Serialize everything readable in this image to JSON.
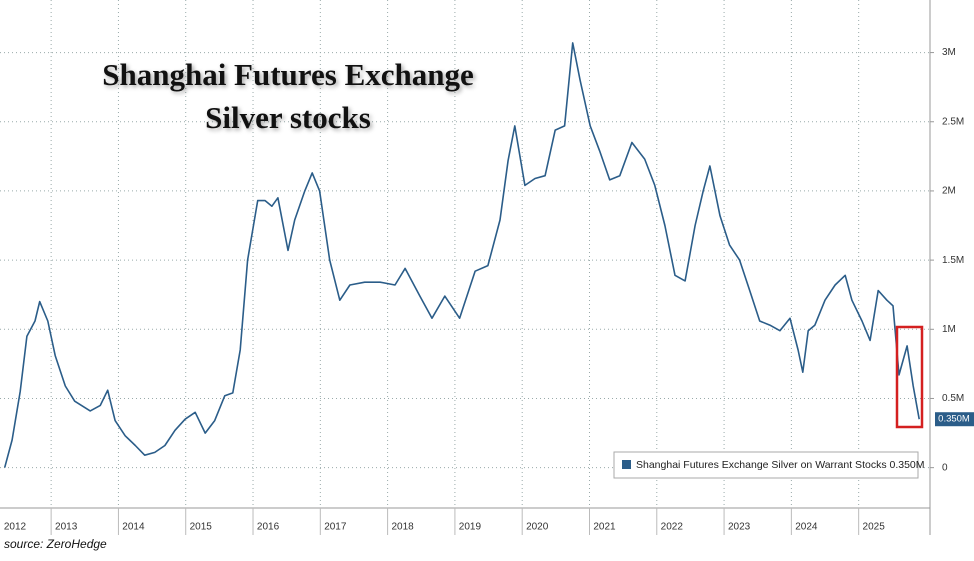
{
  "chart_data": {
    "type": "line",
    "title": "Shanghai Futures Exchange",
    "subtitle": "Silver stocks",
    "source": "source: ZeroHedge",
    "xlim": [
      2012.24,
      2026.06
    ],
    "xticks": [
      2012,
      2013,
      2014,
      2015,
      2016,
      2017,
      2018,
      2019,
      2020,
      2021,
      2022,
      2023,
      2024,
      2025
    ],
    "ylim": [
      -0.27,
      3.38
    ],
    "yticks": [
      0,
      {
        "value": 0.5,
        "label": "0.5M"
      },
      {
        "value": 1,
        "label": "1M"
      },
      {
        "value": 1.5,
        "label": "1.5M"
      },
      {
        "value": 2,
        "label": "2M"
      },
      {
        "value": 2.5,
        "label": "2.5M"
      },
      {
        "value": 3,
        "label": "3M"
      }
    ],
    "grid": true,
    "legend": "lower right",
    "x": [
      2012.31,
      2012.42,
      2012.54,
      2012.64,
      2012.76,
      2012.83,
      2012.95,
      2013.06,
      2013.21,
      2013.35,
      2013.58,
      2013.73,
      2013.84,
      2013.95,
      2014.1,
      2014.25,
      2014.39,
      2014.54,
      2014.69,
      2014.84,
      2014.99,
      2015.14,
      2015.29,
      2015.43,
      2015.58,
      2015.7,
      2015.81,
      2015.92,
      2016.07,
      2016.18,
      2016.28,
      2016.37,
      2016.52,
      2016.62,
      2016.77,
      2016.88,
      2016.99,
      2017.14,
      2017.29,
      2017.44,
      2017.66,
      2017.89,
      2018.11,
      2018.26,
      2018.48,
      2018.66,
      2018.85,
      2019.07,
      2019.3,
      2019.49,
      2019.67,
      2019.79,
      2019.89,
      2020.04,
      2020.19,
      2020.34,
      2020.49,
      2020.63,
      2020.75,
      2020.86,
      2021.01,
      2021.15,
      2021.3,
      2021.45,
      2021.63,
      2021.82,
      2021.97,
      2022.12,
      2022.27,
      2022.42,
      2022.57,
      2022.69,
      2022.79,
      2022.94,
      2023.08,
      2023.23,
      2023.38,
      2023.53,
      2023.68,
      2023.83,
      2023.98,
      2024.1,
      2024.17,
      2024.25,
      2024.35,
      2024.5,
      2024.65,
      2024.8,
      2024.9,
      2025.05,
      2025.17,
      2025.29,
      2025.42,
      2025.51,
      2025.6,
      2025.72,
      2025.81,
      2025.9
    ],
    "series": [
      {
        "name": "Shanghai Futures Exchange Silver on Warrant Stocks 0.350M",
        "color": "#2b5d89",
        "values": [
          0,
          0.2,
          0.55,
          0.95,
          1.06,
          1.2,
          1.06,
          0.81,
          0.59,
          0.48,
          0.41,
          0.45,
          0.56,
          0.34,
          0.23,
          0.16,
          0.09,
          0.11,
          0.16,
          0.27,
          0.35,
          0.4,
          0.25,
          0.34,
          0.52,
          0.54,
          0.85,
          1.5,
          1.93,
          1.93,
          1.89,
          1.95,
          1.57,
          1.79,
          2.0,
          2.13,
          2.0,
          1.5,
          1.21,
          1.32,
          1.34,
          1.34,
          1.32,
          1.44,
          1.24,
          1.08,
          1.24,
          1.08,
          1.42,
          1.46,
          1.79,
          2.22,
          2.47,
          2.04,
          2.09,
          2.11,
          2.44,
          2.47,
          3.07,
          2.8,
          2.47,
          2.29,
          2.08,
          2.11,
          2.35,
          2.23,
          2.04,
          1.75,
          1.39,
          1.35,
          1.75,
          2.0,
          2.18,
          1.82,
          1.61,
          1.5,
          1.28,
          1.06,
          1.03,
          0.99,
          1.08,
          0.85,
          0.69,
          0.99,
          1.03,
          1.21,
          1.32,
          1.39,
          1.21,
          1.06,
          0.92,
          1.28,
          1.21,
          1.17,
          0.67,
          0.88,
          0.59,
          0.35
        ],
        "value_labels": [
          null,
          null,
          null,
          null,
          null,
          null,
          null,
          null,
          null,
          null,
          null,
          null,
          null,
          null,
          null,
          null,
          null,
          null,
          null,
          null,
          null,
          null,
          null,
          null,
          null,
          null,
          null,
          null,
          null,
          null,
          null,
          null,
          null,
          null,
          null,
          null,
          null,
          null,
          null,
          null,
          null,
          null,
          null,
          null,
          null,
          null,
          null,
          null,
          null,
          null,
          null,
          null,
          null,
          null,
          null,
          null,
          null,
          null,
          null,
          null,
          null,
          null,
          null,
          null,
          null,
          null,
          null,
          null,
          null,
          null,
          null,
          null,
          null,
          null,
          null,
          null,
          null,
          null,
          null,
          null,
          null,
          null,
          null,
          null,
          null,
          null,
          null,
          null,
          null,
          null,
          null,
          null,
          null,
          null,
          null,
          null,
          null,
          "0.350M"
        ]
      }
    ]
  }
}
